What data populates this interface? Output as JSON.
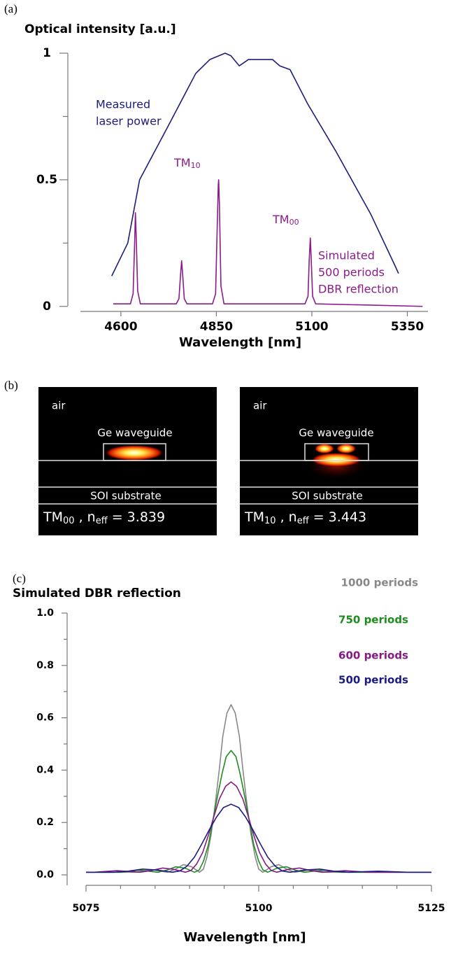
{
  "panel_labels": [
    "(a)",
    "(b)",
    "(c)"
  ],
  "chart_data": [
    {
      "type": "line",
      "y_label": "Optical intensity [a.u.]",
      "x_label": "Wavelength [nm]",
      "xlim": [
        4494,
        5404
      ],
      "ylim": [
        -0.02,
        1
      ],
      "xticks": [
        4600,
        4850,
        5100,
        5350
      ],
      "yticks": [
        0,
        0.5,
        1
      ],
      "yminorticks": [
        0.25,
        0.75
      ],
      "annotations": [
        {
          "text": "TM",
          "sub": "10"
        },
        {
          "text": "TM",
          "sub": "00"
        }
      ],
      "series": [
        {
          "name": [
            "Measured",
            "laser power"
          ],
          "color": "#1c1c7c",
          "x": [
            4576,
            4618,
            4649,
            4723,
            4796,
            4833,
            4873,
            4888,
            4910,
            4934,
            4961,
            4997,
            5016,
            5043,
            5089,
            5162,
            5254,
            5318,
            5327
          ],
          "values": [
            0.12,
            0.25,
            0.5,
            0.71,
            0.92,
            0.975,
            1.0,
            0.99,
            0.95,
            0.975,
            0.975,
            0.975,
            0.95,
            0.935,
            0.8,
            0.615,
            0.365,
            0.16,
            0.13
          ]
        },
        {
          "name": [
            "Simulated",
            "500 periods",
            "DBR reflection"
          ],
          "color": "#8b1a8b",
          "x": [
            4580,
            4625,
            4632,
            4636,
            4638,
            4640,
            4644,
            4651,
            4745,
            4752,
            4756,
            4759,
            4762,
            4766,
            4773,
            4840,
            4848,
            4852,
            4855,
            4856,
            4858,
            4862,
            4870,
            5082,
            5090,
            5093,
            5096,
            5098,
            5102,
            5110,
            5390
          ],
          "values": [
            0.01,
            0.01,
            0.05,
            0.25,
            0.37,
            0.28,
            0.06,
            0.01,
            0.01,
            0.03,
            0.12,
            0.18,
            0.12,
            0.03,
            0.01,
            0.01,
            0.05,
            0.3,
            0.48,
            0.5,
            0.4,
            0.08,
            0.01,
            0.01,
            0.04,
            0.18,
            0.27,
            0.2,
            0.04,
            0.01,
            0.0
          ]
        }
      ]
    },
    {
      "type": "line",
      "title": "Simulated DBR reflection",
      "x_label": "Wavelength [nm]",
      "xlim": [
        5075,
        5125
      ],
      "ylim": [
        -0.04,
        1
      ],
      "xticks": [
        5075,
        5100,
        5125
      ],
      "xminorticks": [
        5080,
        5085,
        5090,
        5095,
        5105,
        5110,
        5115,
        5120
      ],
      "yticks": [
        {
          "value": 0,
          "label": "0.0"
        },
        0.2,
        0.4,
        0.6,
        0.8,
        {
          "value": 1,
          "label": "1.0"
        }
      ],
      "yminorticks": [
        0.1,
        0.3,
        0.5,
        0.7,
        0.9
      ],
      "series": [
        {
          "name": "1000 periods",
          "color": "#888888",
          "x": [
            5075,
            5082.2,
            5084.5,
            5086.8,
            5087.9,
            5089.1,
            5090.3,
            5091.4,
            5092.0,
            5092.5,
            5093.1,
            5093.7,
            5094.3,
            5094.8,
            5095.4,
            5096,
            5096.6,
            5097.2,
            5097.7,
            5098.3,
            5098.9,
            5099.5,
            5100.0,
            5100.6,
            5101.8,
            5102.9,
            5104.1,
            5105.2,
            5107.5,
            5109.8,
            5125
          ],
          "values": [
            0.01,
            0.01,
            0.02,
            0.01,
            0.021,
            0.039,
            0.031,
            0.01,
            0.022,
            0.068,
            0.152,
            0.269,
            0.404,
            0.529,
            0.618,
            0.65,
            0.618,
            0.529,
            0.404,
            0.269,
            0.152,
            0.068,
            0.022,
            0.01,
            0.031,
            0.039,
            0.021,
            0.01,
            0.02,
            0.01,
            0.01
          ]
        },
        {
          "name": "750 periods",
          "color": "#1f8c1f",
          "x": [
            5075,
            5080.1,
            5082.7,
            5085.4,
            5086.7,
            5088.0,
            5089.4,
            5090.7,
            5091.4,
            5092.0,
            5092.7,
            5093.3,
            5094.0,
            5094.7,
            5095.3,
            5096,
            5096.7,
            5097.3,
            5098.0,
            5098.7,
            5099.3,
            5100.0,
            5100.6,
            5101.3,
            5102.6,
            5104.0,
            5105.3,
            5106.6,
            5109.3,
            5111.9,
            5125
          ],
          "values": [
            0.01,
            0.01,
            0.018,
            0.01,
            0.018,
            0.031,
            0.025,
            0.01,
            0.019,
            0.052,
            0.113,
            0.198,
            0.296,
            0.387,
            0.452,
            0.475,
            0.452,
            0.387,
            0.296,
            0.198,
            0.113,
            0.052,
            0.019,
            0.01,
            0.025,
            0.031,
            0.018,
            0.01,
            0.018,
            0.01,
            0.01
          ]
        },
        {
          "name": "600 periods",
          "color": "#841b84",
          "x": [
            5075,
            5076.2,
            5079.5,
            5082.8,
            5084.4,
            5086.1,
            5087.7,
            5089.4,
            5090.2,
            5091.0,
            5091.9,
            5092.7,
            5093.5,
            5094.3,
            5095.2,
            5096,
            5096.8,
            5097.7,
            5098.5,
            5099.3,
            5100.1,
            5101.0,
            5101.8,
            5102.6,
            5104.3,
            5105.9,
            5107.6,
            5109.2,
            5112.5,
            5115.8,
            5125
          ],
          "values": [
            0.01,
            0.01,
            0.016,
            0.01,
            0.016,
            0.026,
            0.021,
            0.01,
            0.017,
            0.041,
            0.086,
            0.15,
            0.222,
            0.29,
            0.338,
            0.355,
            0.338,
            0.29,
            0.222,
            0.15,
            0.086,
            0.041,
            0.017,
            0.01,
            0.021,
            0.026,
            0.016,
            0.01,
            0.016,
            0.01,
            0.01
          ]
        },
        {
          "name": "500 periods",
          "color": "#1c1c80",
          "x": [
            5075,
            5079.0,
            5081.1,
            5083.2,
            5085.4,
            5087.5,
            5088.6,
            5089.6,
            5090.7,
            5091.7,
            5092.8,
            5093.9,
            5094.9,
            5096,
            5097.1,
            5098.1,
            5099.2,
            5100.3,
            5101.3,
            5102.4,
            5103.4,
            5104.5,
            5106.6,
            5108.8,
            5110.9,
            5113.0,
            5117.3,
            5121.5,
            5125
          ],
          "values": [
            0.01,
            0.01,
            0.014,
            0.022,
            0.018,
            0.01,
            0.015,
            0.033,
            0.068,
            0.115,
            0.17,
            0.221,
            0.257,
            0.27,
            0.257,
            0.221,
            0.17,
            0.115,
            0.068,
            0.033,
            0.015,
            0.01,
            0.018,
            0.022,
            0.014,
            0.01,
            0.014,
            0.01,
            0.01
          ]
        }
      ]
    }
  ],
  "mode_images": [
    {
      "air": "air",
      "waveguide": "Ge waveguide",
      "substrate": "SOI substrate",
      "label": [
        "TM",
        "00",
        " , n",
        "eff",
        " = 3.839"
      ]
    },
    {
      "air": "air",
      "waveguide": "Ge waveguide",
      "substrate": "SOI substrate",
      "label": [
        "TM",
        "10",
        " , n",
        "eff",
        " = 3.443"
      ]
    }
  ]
}
